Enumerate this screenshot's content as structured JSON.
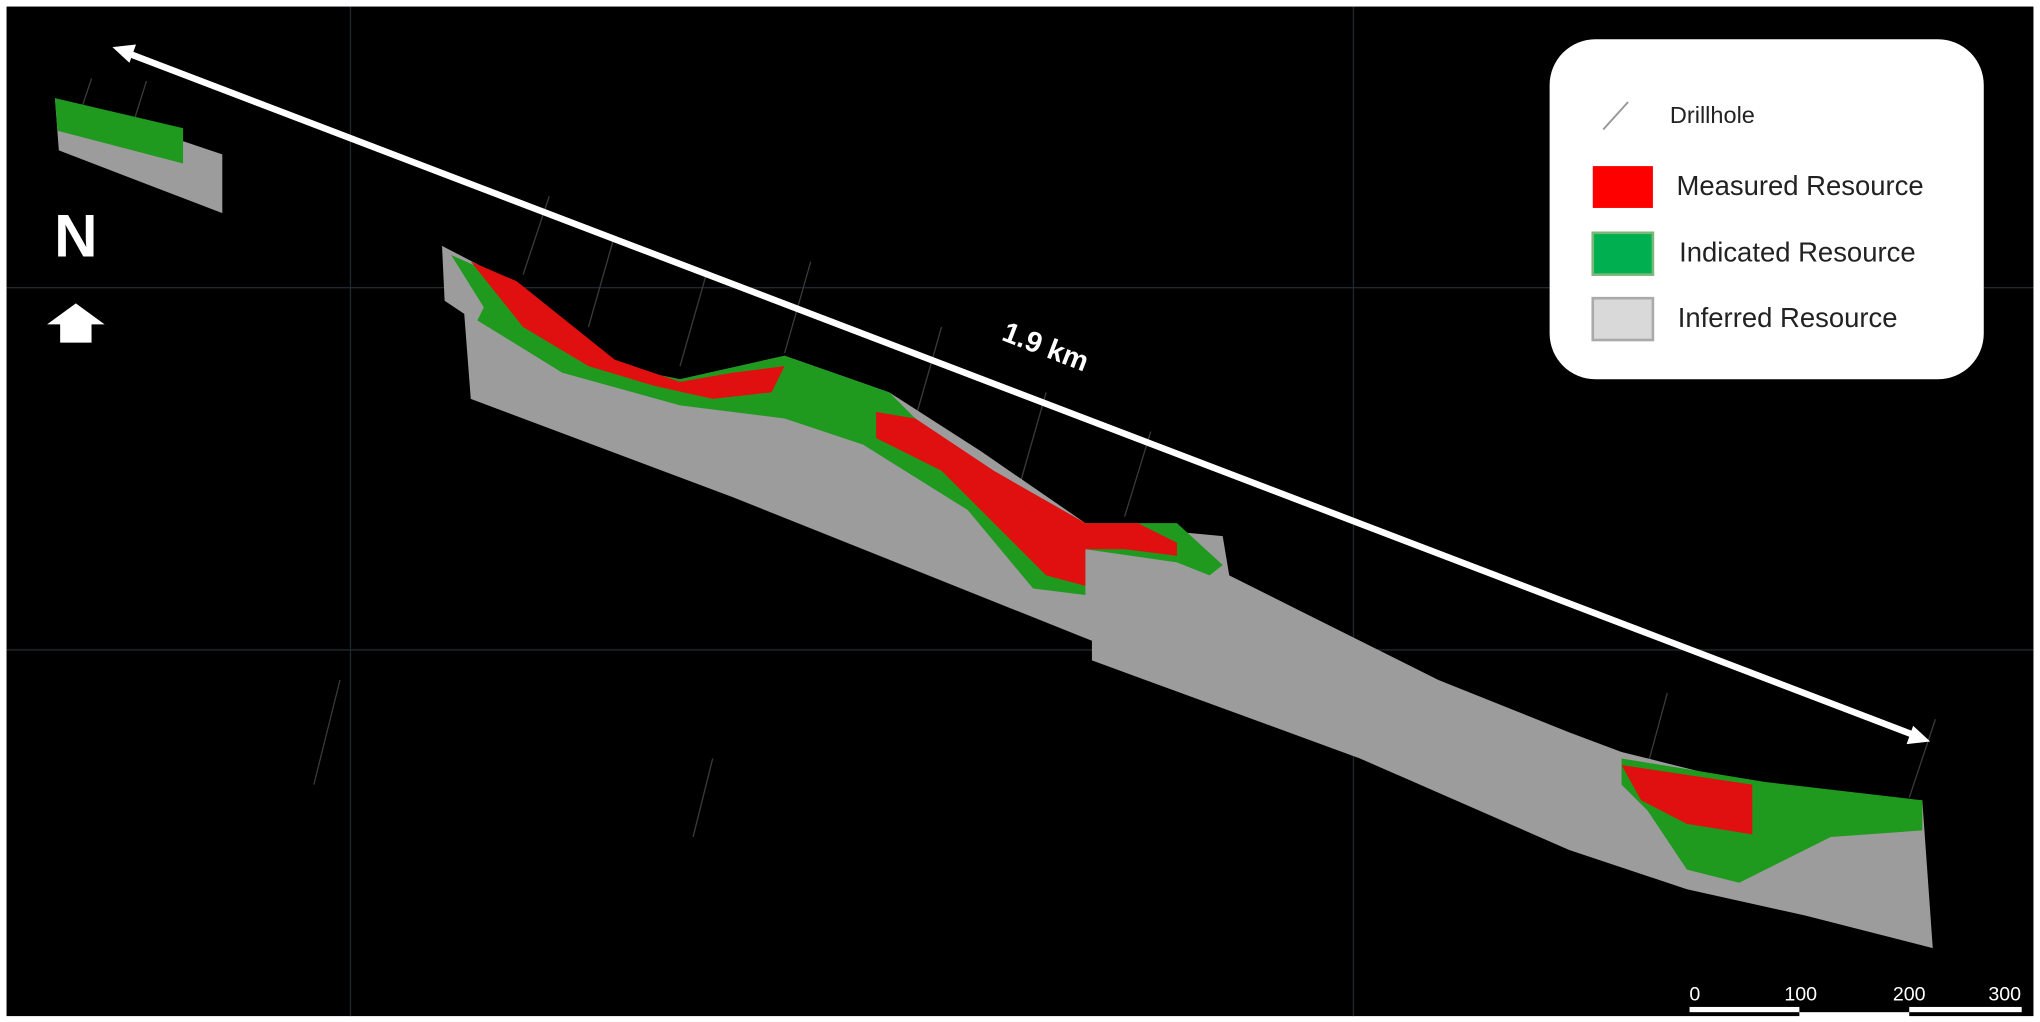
{
  "north_label": "N",
  "distance_label": "1.9 km",
  "legend": {
    "items": [
      "Drillhole",
      "Measured Resource",
      "Indicated Resource",
      "Inferred Resource"
    ]
  },
  "scale_bar": {
    "ticks": [
      0,
      100,
      200,
      300
    ]
  }
}
